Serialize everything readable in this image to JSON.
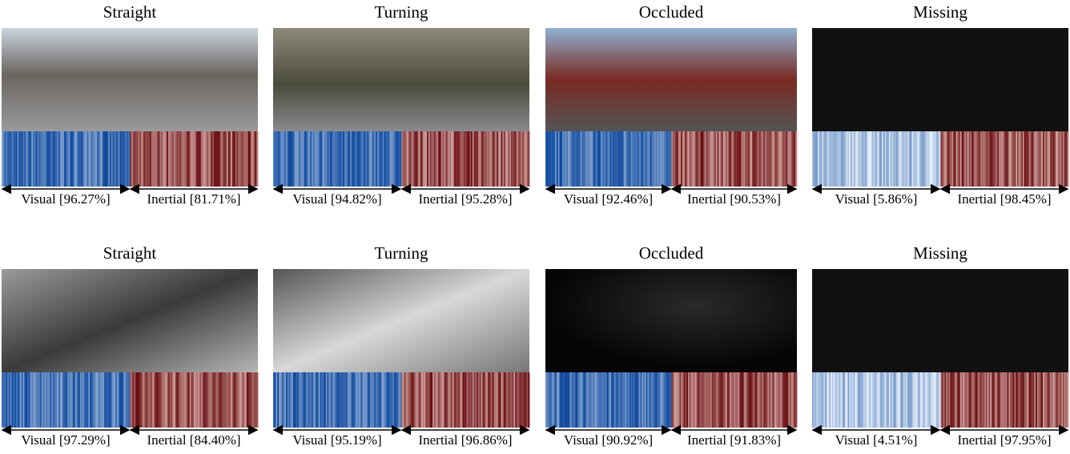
{
  "rows": [
    {
      "panels": [
        {
          "title": "Straight",
          "visual": "Visual  [96.27%]",
          "inertial": "Inertial  [81.71%]"
        },
        {
          "title": "Turning",
          "visual": "Visual  [94.82%]",
          "inertial": "Inertial  [95.28%]"
        },
        {
          "title": "Occluded",
          "visual": "Visual  [92.46%]",
          "inertial": "Inertial  [90.53%]"
        },
        {
          "title": "Missing",
          "visual": "Visual  [5.86%]",
          "inertial": "Inertial  [98.45%]"
        }
      ]
    },
    {
      "panels": [
        {
          "title": "Straight",
          "visual": "Visual  [97.29%]",
          "inertial": "Inertial  [84.40%]"
        },
        {
          "title": "Turning",
          "visual": "Visual  [95.19%]",
          "inertial": "Inertial  [96.86%]"
        },
        {
          "title": "Occluded",
          "visual": "Visual  [90.92%]",
          "inertial": "Inertial  [91.83%]"
        },
        {
          "title": "Missing",
          "visual": "Visual  [4.51%]",
          "inertial": "Inertial  [97.95%]"
        }
      ]
    }
  ]
}
